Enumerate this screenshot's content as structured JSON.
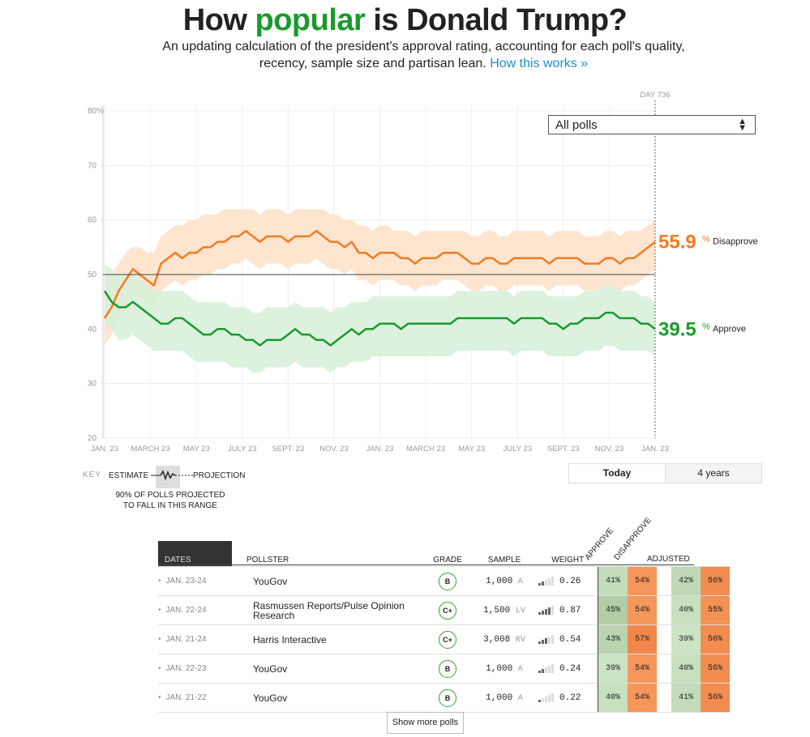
{
  "header": {
    "title_pre": "How ",
    "title_highlight": "popular",
    "title_post": " is Donald Trump?",
    "subtitle": "An updating calculation of the president's approval rating, accounting for each poll's quality, recency, sample size and partisan lean.",
    "subtitle_link": "How this works »"
  },
  "colors": {
    "approve": "#1a9a2a",
    "disapprove": "#f47b20",
    "approve_band": "#d6f0d9",
    "disapprove_band": "#fde0c8"
  },
  "filter": {
    "selected": "All polls"
  },
  "chart_data": {
    "type": "line",
    "ylim": [
      20,
      80
    ],
    "yticks": [
      "20",
      "30",
      "40",
      "50",
      "60",
      "70",
      "80%"
    ],
    "xticks": [
      "JAN. 23",
      "MARCH 23",
      "MAY 23",
      "JULY 23",
      "SEPT. 23",
      "NOV. 23",
      "JAN. 23",
      "MARCH 23",
      "MAY 23",
      "JULY 23",
      "SEPT. 23",
      "NOV. 23",
      "JAN. 23"
    ],
    "day_marker": "DAY 736",
    "reference_line": 50,
    "grid": true,
    "series": [
      {
        "name": "Disapprove",
        "final_value": "55.9",
        "values": [
          42,
          44,
          47,
          49,
          51,
          50,
          49,
          48,
          52,
          53,
          54,
          53,
          54,
          54,
          55,
          55,
          56,
          56,
          57,
          57,
          58,
          57,
          56,
          57,
          57,
          57,
          56,
          57,
          57,
          57,
          58,
          57,
          56,
          56,
          55,
          56,
          54,
          54,
          53,
          54,
          54,
          54,
          53,
          53,
          52,
          53,
          53,
          53,
          54,
          54,
          54,
          53,
          52,
          52,
          53,
          53,
          52,
          52,
          53,
          53,
          53,
          53,
          53,
          52,
          53,
          53,
          53,
          53,
          52,
          52,
          52,
          53,
          53,
          52,
          53,
          53,
          54,
          55,
          56
        ],
        "upper": [
          48,
          50,
          52,
          54,
          55,
          55,
          54,
          54,
          57,
          58,
          59,
          59,
          60,
          60,
          61,
          61,
          61,
          62,
          62,
          62,
          62,
          62,
          61,
          62,
          62,
          62,
          61,
          62,
          62,
          62,
          62,
          62,
          61,
          61,
          60,
          60,
          59,
          59,
          58,
          59,
          59,
          58,
          58,
          58,
          57,
          58,
          58,
          58,
          58,
          58,
          58,
          58,
          57,
          57,
          58,
          58,
          57,
          57,
          58,
          58,
          58,
          58,
          58,
          57,
          58,
          58,
          58,
          58,
          57,
          57,
          57,
          58,
          58,
          57,
          58,
          58,
          58,
          59,
          60
        ],
        "lower": [
          37,
          39,
          42,
          44,
          46,
          46,
          45,
          44,
          47,
          48,
          49,
          48,
          49,
          49,
          50,
          50,
          51,
          51,
          52,
          52,
          53,
          52,
          51,
          52,
          52,
          52,
          51,
          52,
          52,
          52,
          53,
          52,
          51,
          51,
          50,
          51,
          49,
          49,
          48,
          49,
          49,
          49,
          48,
          48,
          47,
          48,
          48,
          48,
          49,
          49,
          49,
          48,
          47,
          47,
          48,
          48,
          47,
          47,
          48,
          48,
          48,
          48,
          48,
          47,
          48,
          48,
          48,
          48,
          47,
          47,
          47,
          48,
          48,
          47,
          48,
          48,
          49,
          50,
          51
        ]
      },
      {
        "name": "Approve",
        "final_value": "39.5",
        "values": [
          47,
          45,
          44,
          44,
          45,
          44,
          43,
          42,
          41,
          41,
          42,
          42,
          41,
          40,
          39,
          39,
          40,
          40,
          39,
          39,
          38,
          38,
          37,
          38,
          38,
          38,
          39,
          40,
          39,
          39,
          38,
          38,
          37,
          38,
          39,
          40,
          39,
          40,
          40,
          41,
          41,
          41,
          40,
          41,
          41,
          41,
          41,
          41,
          41,
          41,
          42,
          42,
          42,
          42,
          42,
          42,
          42,
          42,
          41,
          42,
          42,
          42,
          42,
          41,
          41,
          40,
          41,
          41,
          42,
          42,
          42,
          43,
          43,
          42,
          42,
          42,
          41,
          41,
          40
        ],
        "upper": [
          52,
          51,
          50,
          50,
          50,
          49,
          48,
          47,
          47,
          47,
          47,
          47,
          46,
          45,
          45,
          45,
          45,
          45,
          44,
          44,
          44,
          43,
          43,
          44,
          44,
          44,
          44,
          45,
          44,
          44,
          44,
          44,
          43,
          44,
          44,
          45,
          45,
          45,
          46,
          46,
          46,
          46,
          46,
          46,
          46,
          46,
          46,
          46,
          46,
          46,
          47,
          47,
          47,
          47,
          47,
          47,
          47,
          47,
          46,
          47,
          47,
          47,
          47,
          46,
          46,
          46,
          46,
          46,
          47,
          47,
          47,
          48,
          48,
          47,
          47,
          47,
          46,
          46,
          45
        ],
        "lower": [
          41,
          40,
          38,
          38,
          39,
          38,
          37,
          36,
          36,
          36,
          36,
          36,
          35,
          34,
          34,
          34,
          34,
          34,
          33,
          33,
          33,
          32,
          32,
          33,
          33,
          33,
          33,
          34,
          33,
          33,
          33,
          33,
          32,
          33,
          33,
          34,
          34,
          34,
          35,
          35,
          35,
          35,
          35,
          35,
          35,
          35,
          35,
          35,
          35,
          35,
          36,
          36,
          36,
          36,
          36,
          36,
          36,
          36,
          35,
          36,
          36,
          36,
          36,
          35,
          35,
          35,
          35,
          35,
          36,
          36,
          36,
          37,
          37,
          36,
          36,
          36,
          36,
          36,
          35
        ]
      }
    ]
  },
  "key": {
    "label": "KEY",
    "estimate": "ESTIMATE",
    "projection": "PROJECTION",
    "note": "90% OF POLLS PROJECTED TO FALL IN THIS RANGE"
  },
  "range_toggle": {
    "today": "Today",
    "four_years": "4 years"
  },
  "table": {
    "headers": {
      "dates": "DATES",
      "pollster": "POLLSTER",
      "grade": "GRADE",
      "sample": "SAMPLE",
      "weight": "WEIGHT",
      "approve": "APPROVE",
      "disapprove": "DISAPPROVE",
      "adjusted": "ADJUSTED"
    },
    "rows": [
      {
        "dates": "JAN. 23-24",
        "pollster": "YouGov",
        "grade": "B",
        "sample": "1,000",
        "stype": "A",
        "weight": "0.26",
        "bars": 2,
        "approve": "41%",
        "disapprove": "54%",
        "adj_approve": "42%",
        "adj_disapprove": "56%"
      },
      {
        "dates": "JAN. 22-24",
        "pollster": "Rasmussen Reports/Pulse Opinion Research",
        "grade": "C+",
        "sample": "1,500",
        "stype": "LV",
        "weight": "0.87",
        "bars": 4,
        "approve": "45%",
        "disapprove": "54%",
        "adj_approve": "40%",
        "adj_disapprove": "55%"
      },
      {
        "dates": "JAN. 21-24",
        "pollster": "Harris Interactive",
        "grade": "C+",
        "sample": "3,008",
        "stype": "RV",
        "weight": "0.54",
        "bars": 3,
        "approve": "43%",
        "disapprove": "57%",
        "adj_approve": "39%",
        "adj_disapprove": "56%"
      },
      {
        "dates": "JAN. 22-23",
        "pollster": "YouGov",
        "grade": "B",
        "sample": "1,000",
        "stype": "A",
        "weight": "0.24",
        "bars": 2,
        "approve": "39%",
        "disapprove": "54%",
        "adj_approve": "40%",
        "adj_disapprove": "56%"
      },
      {
        "dates": "JAN. 21-22",
        "pollster": "YouGov",
        "grade": "B",
        "sample": "1,000",
        "stype": "A",
        "weight": "0.22",
        "bars": 1,
        "approve": "40%",
        "disapprove": "54%",
        "adj_approve": "41%",
        "adj_disapprove": "56%"
      }
    ]
  },
  "show_more": "Show more polls"
}
